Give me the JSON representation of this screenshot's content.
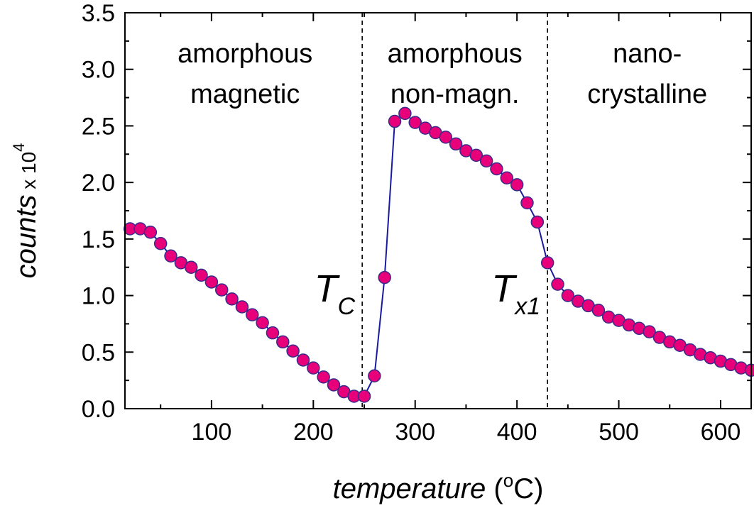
{
  "chart_data": {
    "type": "line",
    "xlabel": "temperature",
    "xunit_prefix": "(",
    "xunit_sup": "o",
    "xunit_suffix": "C)",
    "ylabel": "counts",
    "ylabel_suffix": " x 10",
    "ylabel_sup": "4",
    "xlim": [
      15,
      630
    ],
    "ylim": [
      0,
      3.5
    ],
    "xticks": [
      100,
      200,
      300,
      400,
      500,
      600
    ],
    "yticks": [
      0.0,
      0.5,
      1.0,
      1.5,
      2.0,
      2.5,
      3.0,
      3.5
    ],
    "ytick_labels": [
      "0.0",
      "0.5",
      "1.0",
      "1.5",
      "2.0",
      "2.5",
      "3.0",
      "3.5"
    ],
    "line_color": "#1a1aa0",
    "marker_color": "#e8007a",
    "marker_edge_color": "#3a2a8a",
    "transitions": [
      {
        "name": "T",
        "sub": "C",
        "x": 248
      },
      {
        "name": "T",
        "sub": "x1",
        "x": 430
      }
    ],
    "regions": [
      {
        "line1": "amorphous",
        "line2": "magnetic",
        "x_center": 133
      },
      {
        "line1": "amorphous",
        "line2": "non-magn.",
        "x_center": 339
      },
      {
        "line1": "nano-",
        "line2": "crystalline",
        "x_center": 528
      }
    ],
    "series": [
      {
        "name": "counts",
        "x": [
          20,
          30,
          40,
          50,
          60,
          70,
          80,
          90,
          100,
          110,
          120,
          130,
          140,
          150,
          160,
          170,
          180,
          190,
          200,
          210,
          220,
          230,
          240,
          250,
          260,
          270,
          280,
          290,
          300,
          310,
          320,
          330,
          340,
          350,
          360,
          370,
          380,
          390,
          400,
          410,
          420,
          430,
          440,
          450,
          460,
          470,
          480,
          490,
          500,
          510,
          520,
          530,
          540,
          550,
          560,
          570,
          580,
          590,
          600,
          610,
          620,
          630
        ],
        "y": [
          1.59,
          1.59,
          1.56,
          1.46,
          1.35,
          1.29,
          1.25,
          1.18,
          1.12,
          1.05,
          0.97,
          0.9,
          0.83,
          0.76,
          0.67,
          0.59,
          0.51,
          0.43,
          0.36,
          0.28,
          0.21,
          0.15,
          0.11,
          0.11,
          0.29,
          1.16,
          2.54,
          2.61,
          2.53,
          2.48,
          2.44,
          2.4,
          2.34,
          2.28,
          2.24,
          2.19,
          2.12,
          2.04,
          1.98,
          1.82,
          1.65,
          1.29,
          1.1,
          1.0,
          0.95,
          0.91,
          0.87,
          0.81,
          0.78,
          0.74,
          0.71,
          0.68,
          0.63,
          0.59,
          0.56,
          0.52,
          0.48,
          0.45,
          0.42,
          0.39,
          0.36,
          0.34
        ]
      }
    ]
  }
}
